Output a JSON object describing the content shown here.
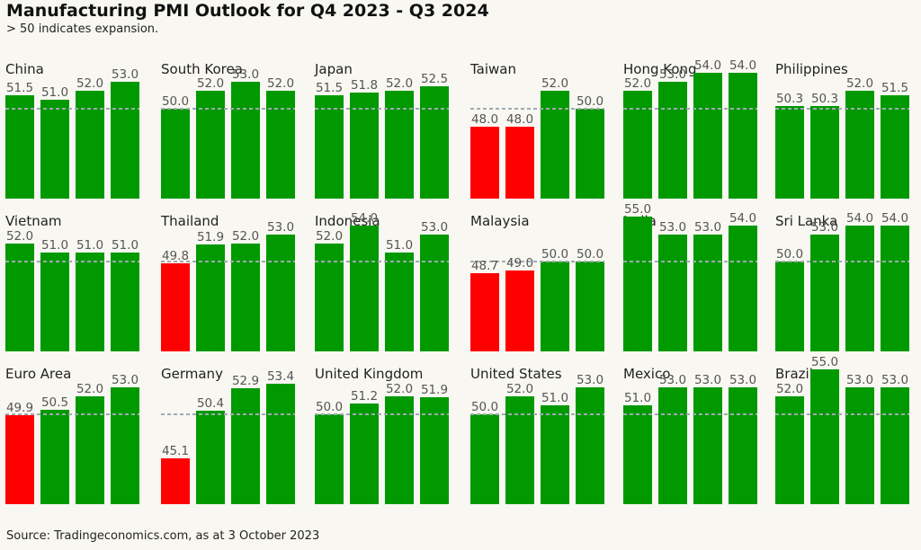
{
  "title": "Manufacturing PMI Outlook for Q4 2023 - Q3 2024",
  "subtitle": "> 50 indicates expansion.",
  "source": "Source: Tradingeconomics.com, as at 3 October 2023",
  "colors": {
    "expansion": "#009900",
    "contraction": "#ff0000",
    "threshold_line": "#a0aab0",
    "background": "#f8f7f1"
  },
  "chart_data": [
    {
      "type": "bar",
      "title": "China",
      "values": [
        51.5,
        51.0,
        52.0,
        53.0
      ],
      "threshold": 50
    },
    {
      "type": "bar",
      "title": "South Korea",
      "values": [
        50.0,
        52.0,
        53.0,
        52.0
      ],
      "threshold": 50
    },
    {
      "type": "bar",
      "title": "Japan",
      "values": [
        51.5,
        51.8,
        52.0,
        52.5
      ],
      "threshold": 50
    },
    {
      "type": "bar",
      "title": "Taiwan",
      "values": [
        48.0,
        48.0,
        52.0,
        50.0
      ],
      "threshold": 50
    },
    {
      "type": "bar",
      "title": "Hong Kong",
      "values": [
        52.0,
        53.0,
        54.0,
        54.0
      ],
      "threshold": 50
    },
    {
      "type": "bar",
      "title": "Philippines",
      "values": [
        50.3,
        50.3,
        52.0,
        51.5
      ],
      "threshold": 50
    },
    {
      "type": "bar",
      "title": "Vietnam",
      "values": [
        52.0,
        51.0,
        51.0,
        51.0
      ],
      "threshold": 50
    },
    {
      "type": "bar",
      "title": "Thailand",
      "values": [
        49.8,
        51.9,
        52.0,
        53.0
      ],
      "threshold": 50
    },
    {
      "type": "bar",
      "title": "Indonesia",
      "values": [
        52.0,
        54.0,
        51.0,
        53.0
      ],
      "threshold": 50
    },
    {
      "type": "bar",
      "title": "Malaysia",
      "values": [
        48.7,
        49.0,
        50.0,
        50.0
      ],
      "threshold": 50
    },
    {
      "type": "bar",
      "title": "India",
      "values": [
        55.0,
        53.0,
        53.0,
        54.0
      ],
      "threshold": 50
    },
    {
      "type": "bar",
      "title": "Sri Lanka",
      "values": [
        50.0,
        53.0,
        54.0,
        54.0
      ],
      "threshold": 50
    },
    {
      "type": "bar",
      "title": "Euro Area",
      "values": [
        49.9,
        50.5,
        52.0,
        53.0
      ],
      "threshold": 50
    },
    {
      "type": "bar",
      "title": "Germany",
      "values": [
        45.1,
        50.4,
        52.9,
        53.4
      ],
      "threshold": 50
    },
    {
      "type": "bar",
      "title": "United Kingdom",
      "values": [
        50.0,
        51.2,
        52.0,
        51.9
      ],
      "threshold": 50
    },
    {
      "type": "bar",
      "title": "United States",
      "values": [
        50.0,
        52.0,
        51.0,
        53.0
      ],
      "threshold": 50
    },
    {
      "type": "bar",
      "title": "Mexico",
      "values": [
        51.0,
        53.0,
        53.0,
        53.0
      ],
      "threshold": 50
    },
    {
      "type": "bar",
      "title": "Brazil",
      "values": [
        52.0,
        55.0,
        53.0,
        53.0
      ],
      "threshold": 50
    }
  ]
}
